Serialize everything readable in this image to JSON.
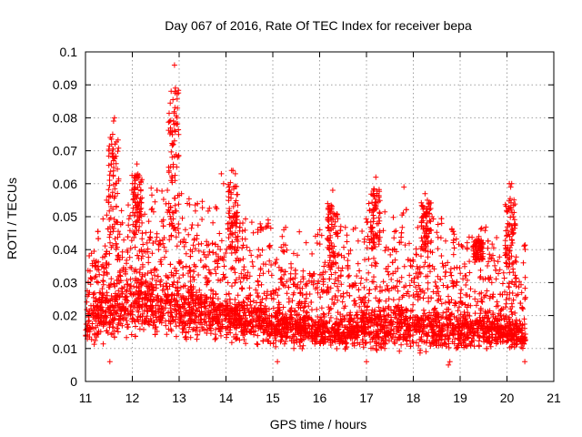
{
  "chart_data": {
    "type": "scatter",
    "title": "Day 067 of 2016, Rate Of TEC Index for receiver bepa",
    "xlabel": "GPS time / hours",
    "ylabel": "ROTI / TECUs",
    "xlim": [
      11,
      21
    ],
    "ylim": [
      0,
      0.1
    ],
    "xticks": [
      "11",
      "12",
      "13",
      "14",
      "15",
      "16",
      "17",
      "18",
      "19",
      "20",
      "21"
    ],
    "yticks": [
      "0",
      "0.01",
      "0.02",
      "0.03",
      "0.04",
      "0.05",
      "0.06",
      "0.07",
      "0.08",
      "0.09",
      "0.1"
    ],
    "grid": true,
    "marker": "plus",
    "color": "#ff0000",
    "data_x_range": [
      11.0,
      20.4
    ],
    "baseline_envelope": {
      "x": [
        11.0,
        11.5,
        12.0,
        12.5,
        13.0,
        13.5,
        14.0,
        14.5,
        15.0,
        15.5,
        16.0,
        16.5,
        17.0,
        17.5,
        18.0,
        18.5,
        19.0,
        19.5,
        20.0,
        20.4
      ],
      "low": [
        0.009,
        0.01,
        0.011,
        0.011,
        0.01,
        0.011,
        0.01,
        0.009,
        0.009,
        0.009,
        0.009,
        0.008,
        0.008,
        0.008,
        0.008,
        0.007,
        0.008,
        0.008,
        0.008,
        0.007
      ],
      "mid": [
        0.02,
        0.024,
        0.026,
        0.027,
        0.025,
        0.024,
        0.022,
        0.02,
        0.019,
        0.018,
        0.017,
        0.017,
        0.019,
        0.019,
        0.019,
        0.018,
        0.017,
        0.018,
        0.017,
        0.016
      ],
      "high": [
        0.035,
        0.04,
        0.045,
        0.048,
        0.045,
        0.043,
        0.041,
        0.038,
        0.037,
        0.035,
        0.034,
        0.036,
        0.04,
        0.04,
        0.041,
        0.038,
        0.036,
        0.037,
        0.034,
        0.03
      ]
    },
    "notable_points": [
      {
        "x": 12.9,
        "y": 0.096
      },
      {
        "x": 12.92,
        "y": 0.089
      },
      {
        "x": 12.91,
        "y": 0.088
      },
      {
        "x": 12.88,
        "y": 0.079
      },
      {
        "x": 12.89,
        "y": 0.078
      },
      {
        "x": 12.9,
        "y": 0.073
      },
      {
        "x": 12.87,
        "y": 0.072
      },
      {
        "x": 12.85,
        "y": 0.068
      },
      {
        "x": 12.83,
        "y": 0.061
      },
      {
        "x": 11.62,
        "y": 0.08
      },
      {
        "x": 11.6,
        "y": 0.079
      },
      {
        "x": 11.58,
        "y": 0.075
      },
      {
        "x": 11.56,
        "y": 0.072
      },
      {
        "x": 11.6,
        "y": 0.067
      },
      {
        "x": 11.55,
        "y": 0.066
      },
      {
        "x": 11.5,
        "y": 0.056
      },
      {
        "x": 11.45,
        "y": 0.055
      },
      {
        "x": 11.52,
        "y": 0.006
      },
      {
        "x": 12.1,
        "y": 0.066
      },
      {
        "x": 12.05,
        "y": 0.06
      },
      {
        "x": 12.75,
        "y": 0.058
      },
      {
        "x": 13.05,
        "y": 0.057
      },
      {
        "x": 13.9,
        "y": 0.063
      },
      {
        "x": 13.95,
        "y": 0.06
      },
      {
        "x": 14.12,
        "y": 0.064
      },
      {
        "x": 14.15,
        "y": 0.064
      },
      {
        "x": 14.2,
        "y": 0.063
      },
      {
        "x": 14.08,
        "y": 0.058
      },
      {
        "x": 14.06,
        "y": 0.056
      },
      {
        "x": 14.3,
        "y": 0.048
      },
      {
        "x": 14.9,
        "y": 0.049
      },
      {
        "x": 15.2,
        "y": 0.044
      },
      {
        "x": 15.1,
        "y": 0.006
      },
      {
        "x": 16.28,
        "y": 0.058
      },
      {
        "x": 16.25,
        "y": 0.053
      },
      {
        "x": 16.3,
        "y": 0.051
      },
      {
        "x": 17.2,
        "y": 0.062
      },
      {
        "x": 17.15,
        "y": 0.057
      },
      {
        "x": 17.05,
        "y": 0.054
      },
      {
        "x": 17.0,
        "y": 0.006
      },
      {
        "x": 17.8,
        "y": 0.059
      },
      {
        "x": 18.25,
        "y": 0.057
      },
      {
        "x": 18.3,
        "y": 0.055
      },
      {
        "x": 18.2,
        "y": 0.05
      },
      {
        "x": 18.4,
        "y": 0.05
      },
      {
        "x": 18.75,
        "y": 0.005
      },
      {
        "x": 18.78,
        "y": 0.006
      },
      {
        "x": 19.35,
        "y": 0.043
      },
      {
        "x": 19.4,
        "y": 0.044
      },
      {
        "x": 20.05,
        "y": 0.06
      },
      {
        "x": 20.08,
        "y": 0.059
      },
      {
        "x": 20.1,
        "y": 0.06
      },
      {
        "x": 20.06,
        "y": 0.044
      },
      {
        "x": 20.1,
        "y": 0.043
      },
      {
        "x": 20.35,
        "y": 0.036
      },
      {
        "x": 20.38,
        "y": 0.006
      }
    ],
    "spike_groups": [
      {
        "x": 11.6,
        "top": 0.08
      },
      {
        "x": 12.1,
        "top": 0.066
      },
      {
        "x": 12.88,
        "top": 0.096
      },
      {
        "x": 14.15,
        "top": 0.064
      },
      {
        "x": 16.28,
        "top": 0.058
      },
      {
        "x": 17.18,
        "top": 0.062
      },
      {
        "x": 18.28,
        "top": 0.057
      },
      {
        "x": 19.38,
        "top": 0.044
      },
      {
        "x": 20.07,
        "top": 0.06
      }
    ],
    "approx_point_count": 4200
  }
}
